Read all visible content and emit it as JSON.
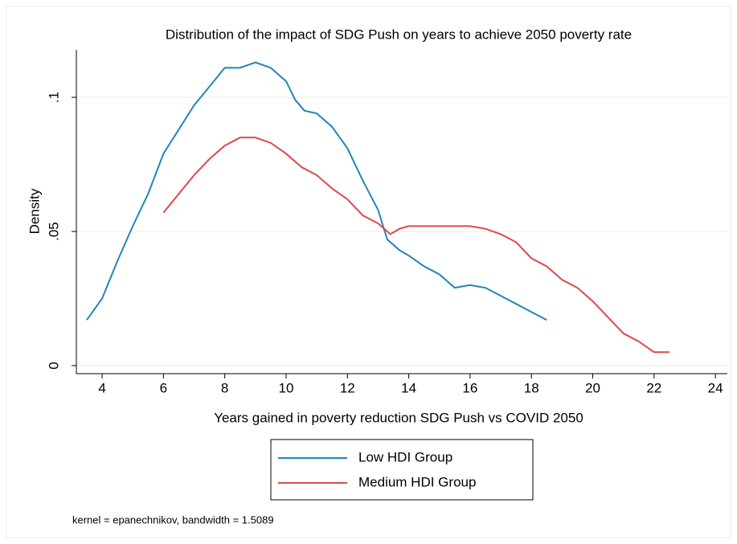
{
  "chart_data": {
    "type": "line",
    "title": "Distribution of the impact of SDG Push on years to achieve 2050 poverty rate",
    "xlabel": "Years gained in poverty reduction SDG Push vs COVID 2050",
    "ylabel": "Density",
    "note": "kernel = epanechnikov, bandwidth = 1.5089",
    "xlim": [
      3.16,
      24.39
    ],
    "xticks": [
      4,
      6,
      8,
      10,
      12,
      14,
      16,
      18,
      20,
      22,
      24
    ],
    "ylim": [
      -0.003,
      0.1177
    ],
    "yticks": [
      0,
      {
        "value": 0.05,
        "label": ".05"
      },
      {
        "value": 0.1,
        "label": ".1"
      }
    ],
    "grid": true,
    "legend": "bottom",
    "series": [
      {
        "name": "Low HDI Group",
        "color": "#1f87b5",
        "x": [
          3.5,
          4,
          4.5,
          5,
          5.5,
          6,
          6.5,
          7,
          7.5,
          8,
          8.5,
          9,
          9.5,
          10,
          10.3,
          10.6,
          11,
          11.5,
          12,
          12.5,
          13,
          13.3,
          13.7,
          14,
          14.5,
          15,
          15.5,
          16,
          16.5,
          17,
          17.5,
          18,
          18.5
        ],
        "values": [
          0.017,
          0.025,
          0.039,
          0.052,
          0.064,
          0.079,
          0.088,
          0.097,
          0.104,
          0.111,
          0.111,
          0.113,
          0.111,
          0.106,
          0.099,
          0.095,
          0.094,
          0.089,
          0.081,
          0.069,
          0.058,
          0.047,
          0.043,
          0.041,
          0.037,
          0.034,
          0.029,
          0.03,
          0.029,
          0.026,
          0.023,
          0.02,
          0.017
        ]
      },
      {
        "name": "Medium HDI Group",
        "color": "#e0474c",
        "x": [
          6,
          6.5,
          7,
          7.5,
          8,
          8.5,
          9,
          9.5,
          10,
          10.5,
          11,
          11.5,
          12,
          12.5,
          13,
          13.4,
          13.7,
          14,
          14.5,
          15,
          15.5,
          16,
          16.5,
          17,
          17.5,
          18,
          18.5,
          19,
          19.5,
          20,
          20.5,
          21,
          21.5,
          22,
          22.5
        ],
        "values": [
          0.057,
          0.064,
          0.071,
          0.077,
          0.082,
          0.085,
          0.085,
          0.083,
          0.079,
          0.074,
          0.071,
          0.066,
          0.062,
          0.056,
          0.053,
          0.049,
          0.051,
          0.052,
          0.052,
          0.052,
          0.052,
          0.052,
          0.051,
          0.049,
          0.046,
          0.04,
          0.037,
          0.032,
          0.029,
          0.024,
          0.018,
          0.012,
          0.009,
          0.005,
          0.005
        ]
      }
    ]
  }
}
